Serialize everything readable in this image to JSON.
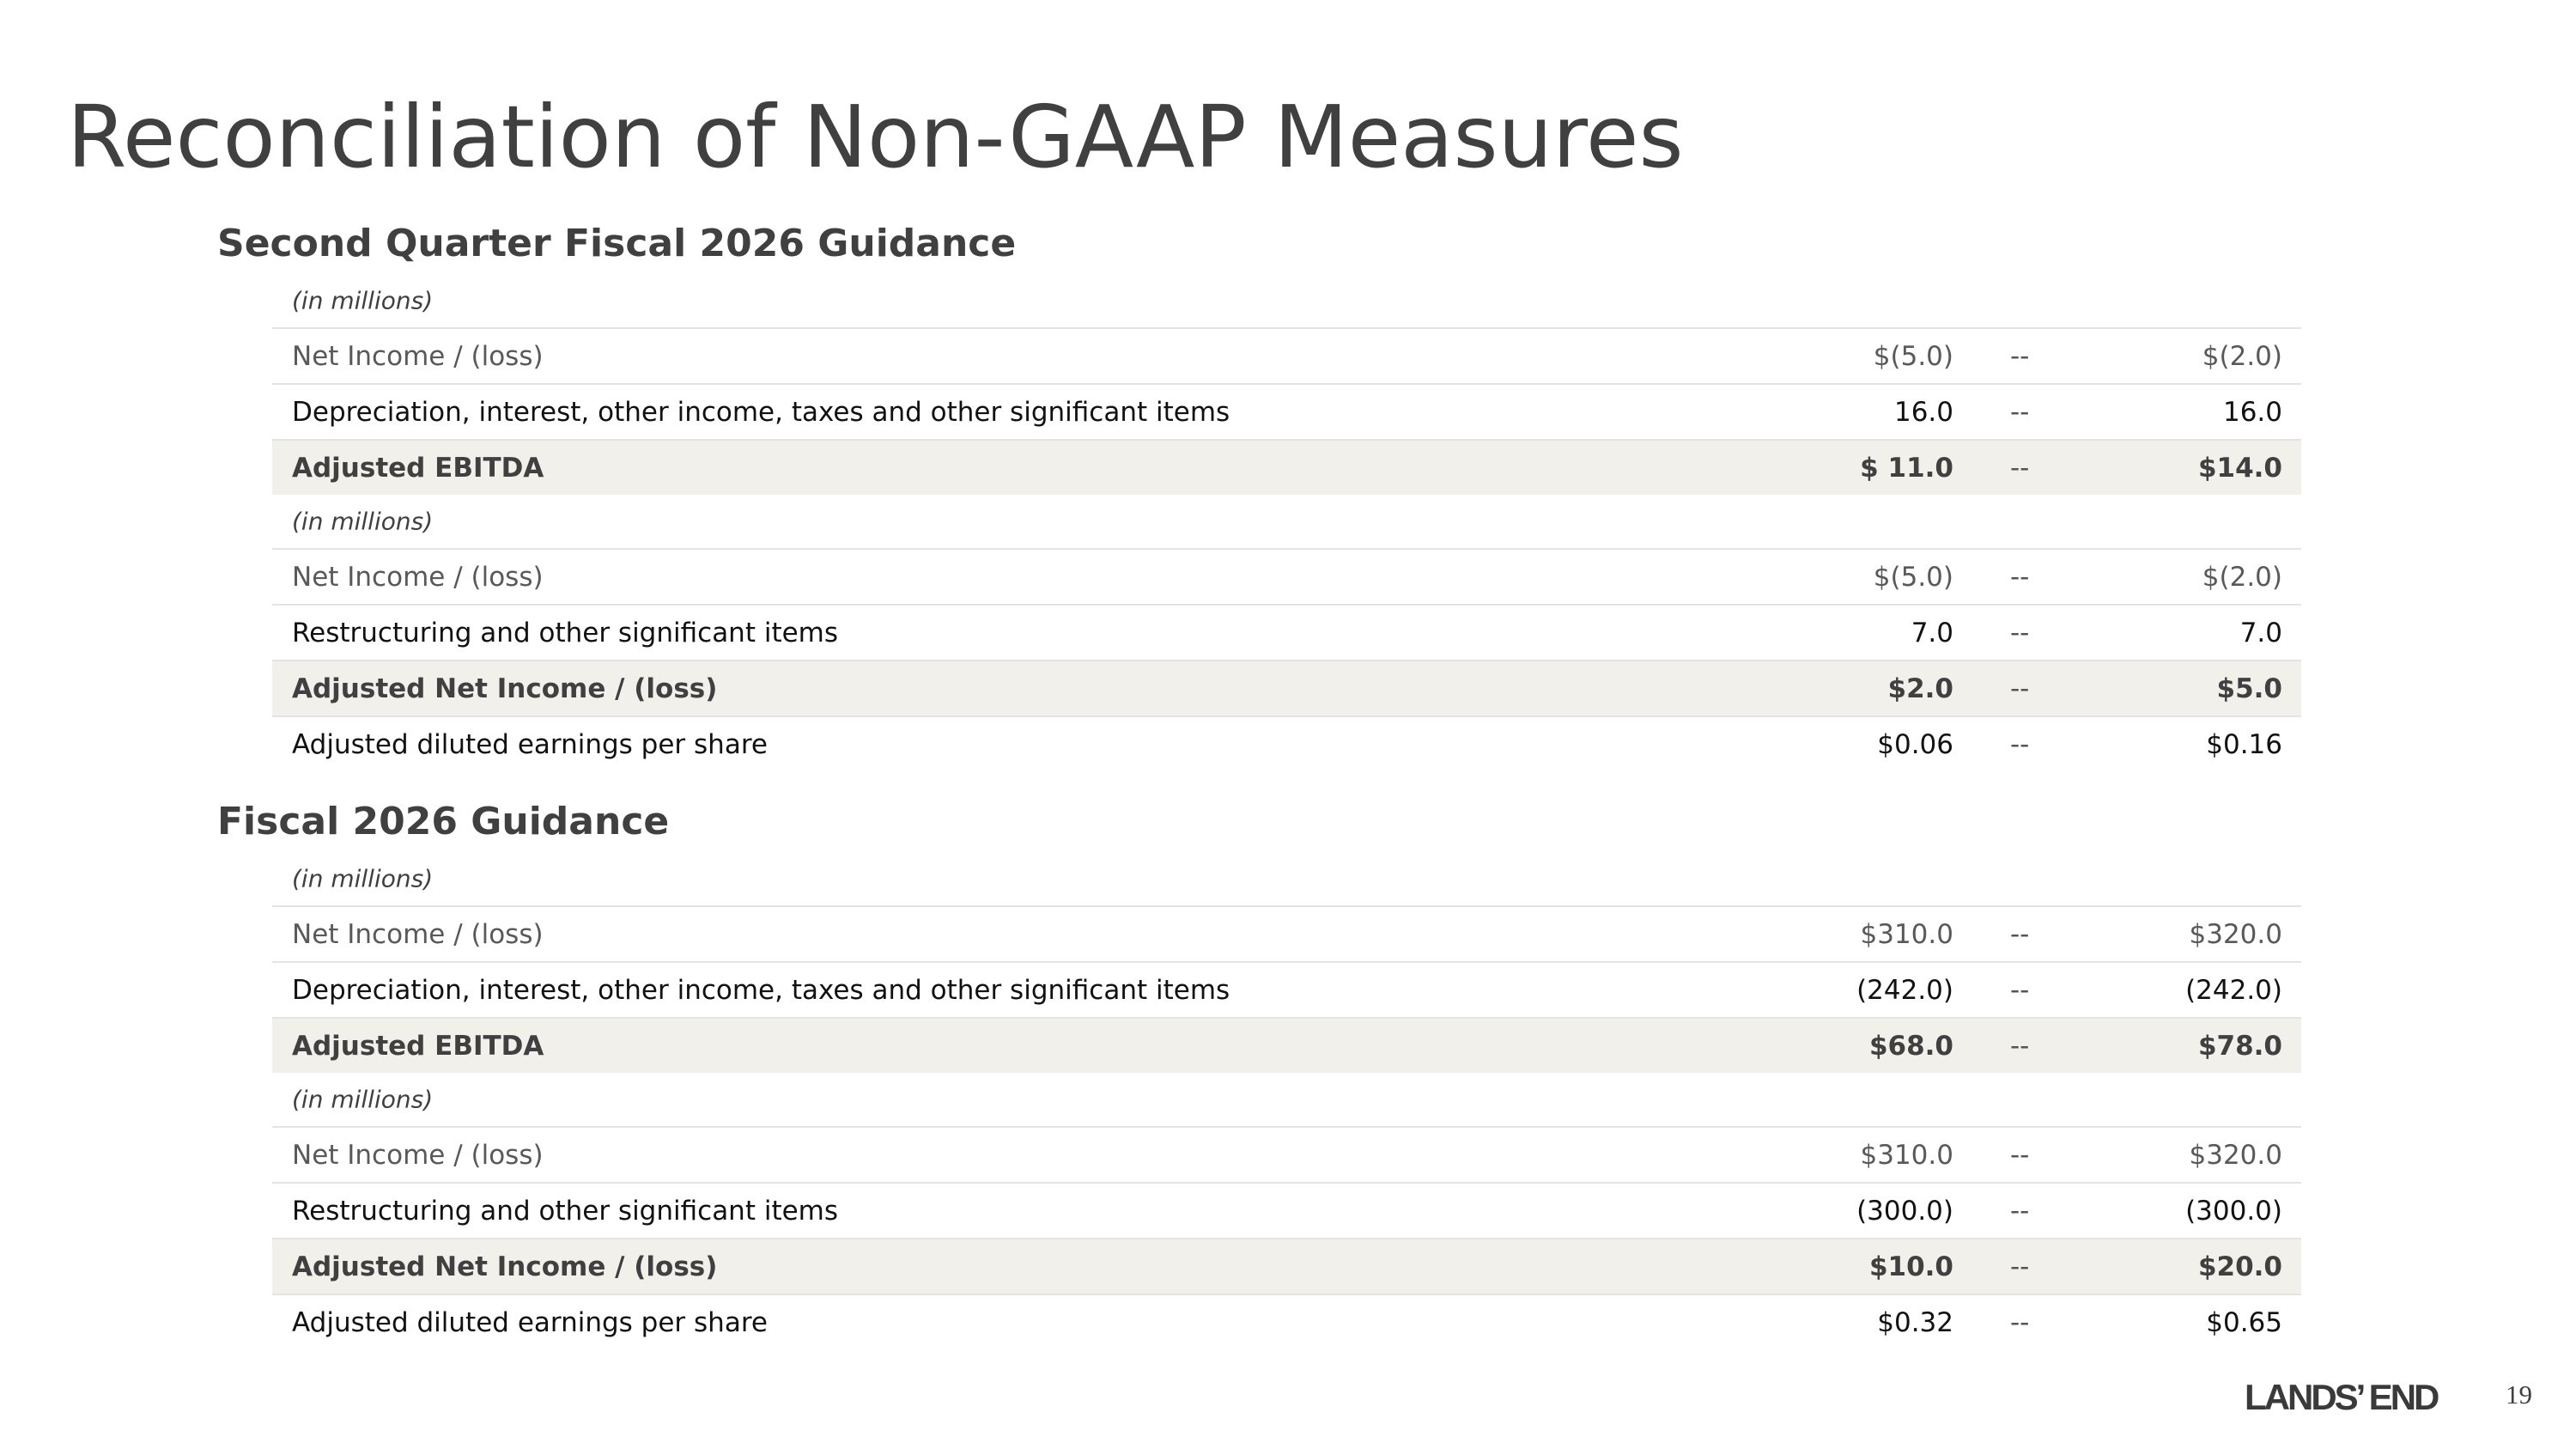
{
  "title": "Reconciliation of Non-GAAP Measures",
  "sections": [
    {
      "heading": "Second Quarter Fiscal 2026 Guidance",
      "tables": [
        {
          "unit": "(in millions)",
          "rows": [
            [
              "Net Income / (loss)",
              "$(5.0)",
              "--",
              "$(2.0)"
            ],
            [
              "Depreciation, interest, other income, taxes and other significant items",
              "16.0",
              "--",
              "16.0"
            ],
            [
              "Adjusted EBITDA",
              "$ 11.0",
              "--",
              "$14.0"
            ]
          ]
        },
        {
          "unit": "(in millions)",
          "rows": [
            [
              "Net Income / (loss)",
              "$(5.0)",
              "--",
              "$(2.0)"
            ],
            [
              "Restructuring and other significant items",
              "7.0",
              "--",
              "7.0"
            ],
            [
              "Adjusted Net Income / (loss)",
              "$2.0",
              "--",
              "$5.0"
            ],
            [
              "Adjusted diluted earnings per share",
              "$0.06",
              "--",
              "$0.16"
            ]
          ]
        }
      ]
    },
    {
      "heading": "Fiscal 2026 Guidance",
      "tables": [
        {
          "unit": "(in millions)",
          "rows": [
            [
              "Net Income / (loss)",
              "$310.0",
              "--",
              "$320.0"
            ],
            [
              "Depreciation, interest, other income, taxes and other significant items",
              "(242.0)",
              "--",
              "(242.0)"
            ],
            [
              "Adjusted EBITDA",
              "$68.0",
              "--",
              "$78.0"
            ]
          ]
        },
        {
          "unit": "(in millions)",
          "rows": [
            [
              "Net Income / (loss)",
              "$310.0",
              "--",
              "$320.0"
            ],
            [
              "Restructuring and other significant items",
              "(300.0)",
              "--",
              "(300.0)"
            ],
            [
              "Adjusted Net Income / (loss)",
              "$10.0",
              "--",
              "$20.0"
            ],
            [
              "Adjusted diluted earnings per share",
              "$0.32",
              "--",
              "$0.65"
            ]
          ]
        }
      ]
    }
  ],
  "footer": {
    "logo": "LANDS’ END",
    "page": "19"
  }
}
